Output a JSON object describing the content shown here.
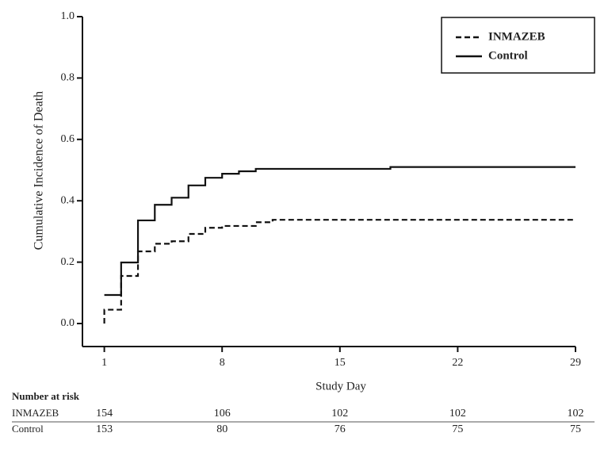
{
  "chart_data": {
    "type": "step",
    "xlabel": "Study Day",
    "ylabel": "Cumulative Incidence of Death",
    "xlim": [
      -0.3,
      29
    ],
    "ylim": [
      -0.075,
      1.0
    ],
    "xticks": [
      1,
      8,
      15,
      22,
      29
    ],
    "yticks": [
      {
        "value": 0,
        "label": "0.0"
      },
      {
        "value": 0.2,
        "label": "0.2"
      },
      {
        "value": 0.4,
        "label": "0.4"
      },
      {
        "value": 0.6,
        "label": "0.6"
      },
      {
        "value": 0.8,
        "label": "0.8"
      },
      {
        "value": 1.0,
        "label": "1.0"
      }
    ],
    "legend": "upper right",
    "series": [
      {
        "name": "INMAZEB",
        "color": "#111111",
        "dash": "dashed",
        "x": [
          1,
          1,
          2,
          3,
          4,
          5,
          6,
          7,
          8,
          10,
          11,
          29
        ],
        "values": [
          0,
          0.045,
          0.155,
          0.235,
          0.26,
          0.268,
          0.292,
          0.312,
          0.318,
          0.33,
          0.338,
          0.338
        ]
      },
      {
        "name": "Control",
        "color": "#111111",
        "dash": "solid",
        "x": [
          1,
          2,
          3,
          4,
          5,
          6,
          7,
          8,
          9,
          10,
          18,
          29
        ],
        "values": [
          0.093,
          0.199,
          0.336,
          0.387,
          0.41,
          0.45,
          0.475,
          0.488,
          0.496,
          0.504,
          0.51,
          0.51
        ]
      }
    ],
    "risk_table": {
      "title": "Number at risk",
      "rows": [
        {
          "name": "INMAZEB",
          "values": [
            154,
            106,
            102,
            102,
            102
          ]
        },
        {
          "name": "Control",
          "values": [
            153,
            80,
            76,
            75,
            75
          ]
        }
      ]
    }
  }
}
